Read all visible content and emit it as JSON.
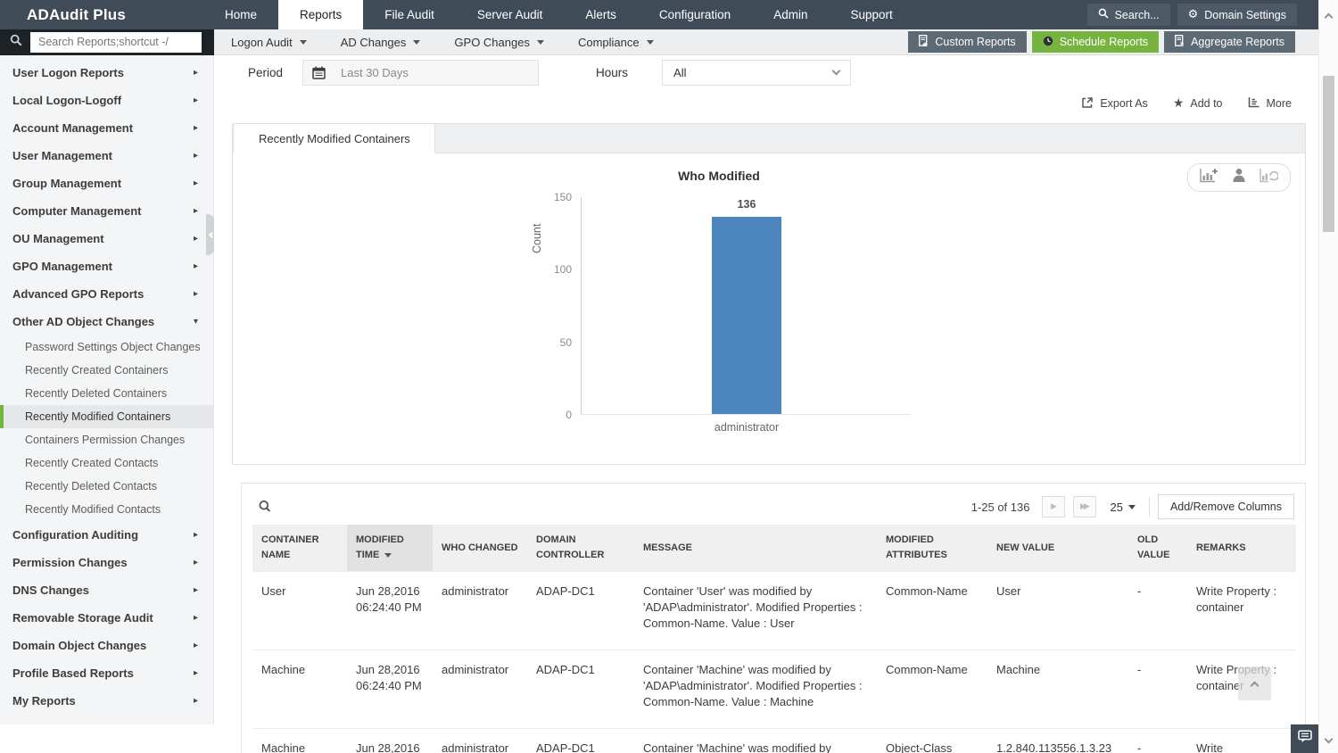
{
  "colors": {
    "accent_green": "#77b43f",
    "nav_dark": "#3f4c58",
    "bar_blue": "#4c84bc"
  },
  "topnav": {
    "logo": "ADAudit Plus",
    "items": [
      "Home",
      "Reports",
      "File Audit",
      "Server Audit",
      "Alerts",
      "Configuration",
      "Admin",
      "Support"
    ],
    "active_item": "Reports",
    "search_button": "Search...",
    "domain_settings_button": "Domain Settings"
  },
  "toolbar": {
    "search_placeholder": "Search Reports;shortcut -/",
    "menus": [
      "Logon Audit",
      "AD Changes",
      "GPO Changes",
      "Compliance"
    ],
    "buttons": {
      "custom_reports": "Custom Reports",
      "schedule_reports": "Schedule Reports",
      "aggregate_reports": "Aggregate Reports"
    }
  },
  "sidebar": {
    "items": [
      {
        "label": "User Logon Reports",
        "expanded": false
      },
      {
        "label": "Local Logon-Logoff",
        "expanded": false
      },
      {
        "label": "Account Management",
        "expanded": false
      },
      {
        "label": "User Management",
        "expanded": false
      },
      {
        "label": "Group Management",
        "expanded": false
      },
      {
        "label": "Computer Management",
        "expanded": false
      },
      {
        "label": "OU Management",
        "expanded": false
      },
      {
        "label": "GPO Management",
        "expanded": false
      },
      {
        "label": "Advanced GPO Reports",
        "expanded": false
      },
      {
        "label": "Other AD Object Changes",
        "expanded": true,
        "children": [
          "Password Settings Object Changes",
          "Recently Created Containers",
          "Recently Deleted Containers",
          "Recently Modified Containers",
          "Containers Permission Changes",
          "Recently Created Contacts",
          "Recently Deleted Contacts",
          "Recently Modified Contacts"
        ]
      },
      {
        "label": "Configuration Auditing",
        "expanded": false
      },
      {
        "label": "Permission Changes",
        "expanded": false
      },
      {
        "label": "DNS Changes",
        "expanded": false
      },
      {
        "label": "Removable Storage Audit",
        "expanded": false
      },
      {
        "label": "Domain Object Changes",
        "expanded": false
      },
      {
        "label": "Profile Based Reports",
        "expanded": false
      },
      {
        "label": "My Reports",
        "expanded": false
      }
    ],
    "active_child": "Recently Modified Containers"
  },
  "filters": {
    "period_label": "Period",
    "period_value": "Last 30 Days",
    "hours_label": "Hours",
    "hours_value": "All"
  },
  "report_actions": {
    "export_as": "Export As",
    "add_to": "Add to",
    "more": "More"
  },
  "report": {
    "tab_label": "Recently Modified Containers"
  },
  "chart_data": {
    "type": "bar",
    "title": "Who Modified",
    "categories": [
      "administrator"
    ],
    "values": [
      136
    ],
    "xlabel": "",
    "ylabel": "Count",
    "ylim": [
      0,
      150
    ],
    "yticks": [
      0,
      50,
      100,
      150
    ],
    "bar_color": "#4c84bc",
    "value_labels": true,
    "legend": false,
    "grid": false
  },
  "table": {
    "pagination": {
      "range_text": "1-25 of 136",
      "page_size": "25",
      "add_remove_columns": "Add/Remove Columns"
    },
    "columns": [
      "CONTAINER NAME",
      "MODIFIED TIME",
      "WHO CHANGED",
      "DOMAIN CONTROLLER",
      "MESSAGE",
      "MODIFIED ATTRIBUTES",
      "NEW VALUE",
      "OLD VALUE",
      "REMARKS"
    ],
    "sorted_column": "MODIFIED TIME",
    "sort_direction": "desc",
    "rows": [
      [
        "User",
        "Jun 28,2016 06:24:40 PM",
        "administrator",
        "ADAP-DC1",
        "Container 'User' was modified by 'ADAP\\administrator'. Modified Properties : Common-Name. Value : User",
        "Common-Name",
        "User",
        "-",
        "Write Property : container"
      ],
      [
        "Machine",
        "Jun 28,2016 06:24:40 PM",
        "administrator",
        "ADAP-DC1",
        "Container 'Machine' was modified by 'ADAP\\administrator'. Modified Properties : Common-Name. Value : Machine",
        "Common-Name",
        "Machine",
        "-",
        "Write Property : container"
      ],
      [
        "Machine",
        "Jun 28,2016",
        "administrator",
        "ADAP-DC1",
        "Container 'Machine' was modified by",
        "Object-Class",
        "1.2.840.113556.1.3.23",
        "-",
        "Write"
      ]
    ]
  }
}
